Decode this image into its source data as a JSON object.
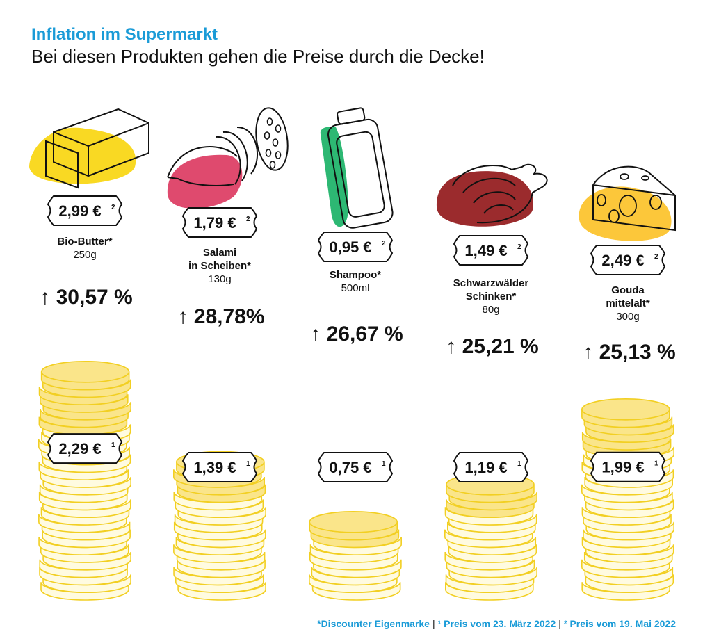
{
  "title": "Inflation im Supermarkt",
  "subtitle": "Bei diesen Produkten gehen die Preise durch die Decke!",
  "footer": {
    "note1": "*Discounter Eigenmarke",
    "note2": "¹ Preis vom 23. März 2022",
    "note3": "² Preis vom 19. Mai 2022",
    "separator": "|"
  },
  "colors": {
    "accent": "#1a9bd7",
    "coin_old": "#fffbe0",
    "coin_new": "#fae58a",
    "coin_stroke": "#f2cf22"
  },
  "chart_data": {
    "type": "bar",
    "series": [
      {
        "name": "Preis vom 23. März 2022",
        "values": [
          2.29,
          1.39,
          0.75,
          1.19,
          1.99
        ]
      },
      {
        "name": "Preis vom 19. Mai 2022",
        "values": [
          2.99,
          1.79,
          0.95,
          1.49,
          2.49
        ]
      }
    ],
    "products": [
      {
        "name": "Bio-Butter*",
        "size": "250g",
        "old_price": "2,29 €",
        "old_sup": "1",
        "new_price": "2,99 €",
        "new_sup": "2",
        "change": "↑ 30,57 %",
        "change_value": 30.57,
        "icon": "butter-icon",
        "blob_color": "#f9d923"
      },
      {
        "name": "Salami\nin Scheiben*",
        "size": "130g",
        "old_price": "1,39 €",
        "old_sup": "1",
        "new_price": "1,79 €",
        "new_sup": "2",
        "change": "↑ 28,78%",
        "change_value": 28.78,
        "icon": "salami-icon",
        "blob_color": "#df4a6e"
      },
      {
        "name": "Shampoo*",
        "size": "500ml",
        "old_price": "0,75 €",
        "old_sup": "1",
        "new_price": "0,95 €",
        "new_sup": "2",
        "change": "↑ 26,67 %",
        "change_value": 26.67,
        "icon": "shampoo-bottle-icon",
        "blob_color": "#2db873"
      },
      {
        "name": "Schwarzwälder\nSchinken*",
        "size": "80g",
        "old_price": "1,19 €",
        "old_sup": "1",
        "new_price": "1,49 €",
        "new_sup": "2",
        "change": "↑ 25,21 %",
        "change_value": 25.21,
        "icon": "ham-icon",
        "blob_color": "#9b2b2d"
      },
      {
        "name": "Gouda\nmittelalt*",
        "size": "300g",
        "old_price": "1,99 €",
        "old_sup": "1",
        "new_price": "2,49 €",
        "new_sup": "2",
        "change": "↑ 25,13 %",
        "change_value": 25.13,
        "icon": "cheese-icon",
        "blob_color": "#fcc73a"
      }
    ]
  }
}
